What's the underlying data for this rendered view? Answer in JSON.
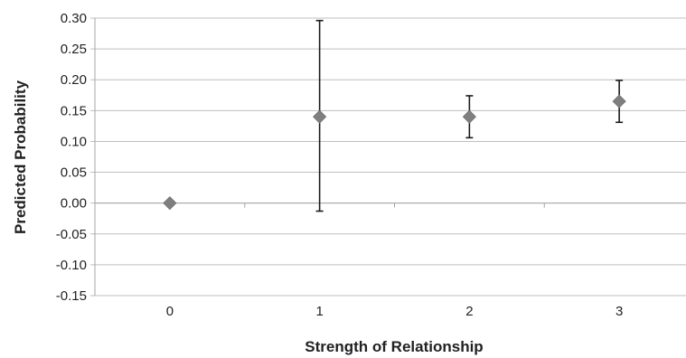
{
  "chart_data": {
    "type": "scatter",
    "title": "",
    "xlabel": "Strength of Relationship",
    "ylabel": "Predicted Probability",
    "categories": [
      "0",
      "1",
      "2",
      "3"
    ],
    "series": [
      {
        "values": [
          0.0,
          0.14,
          0.14,
          0.165
        ],
        "err_low": [
          0.0,
          -0.013,
          0.106,
          0.131
        ],
        "err_high": [
          0.0,
          0.296,
          0.174,
          0.199
        ]
      }
    ],
    "ylim": [
      -0.15,
      0.3
    ],
    "yticks": [
      "0.30",
      "0.25",
      "0.20",
      "0.15",
      "0.10",
      "0.05",
      "0.00",
      "-0.05",
      "-0.10",
      "-0.15"
    ],
    "grid": true,
    "marker": "diamond",
    "colors": {
      "marker": "#7f7f7f",
      "errorbar": "#1a1a1a",
      "grid": "#bfbfbf",
      "axis": "#a6a6a6"
    }
  }
}
